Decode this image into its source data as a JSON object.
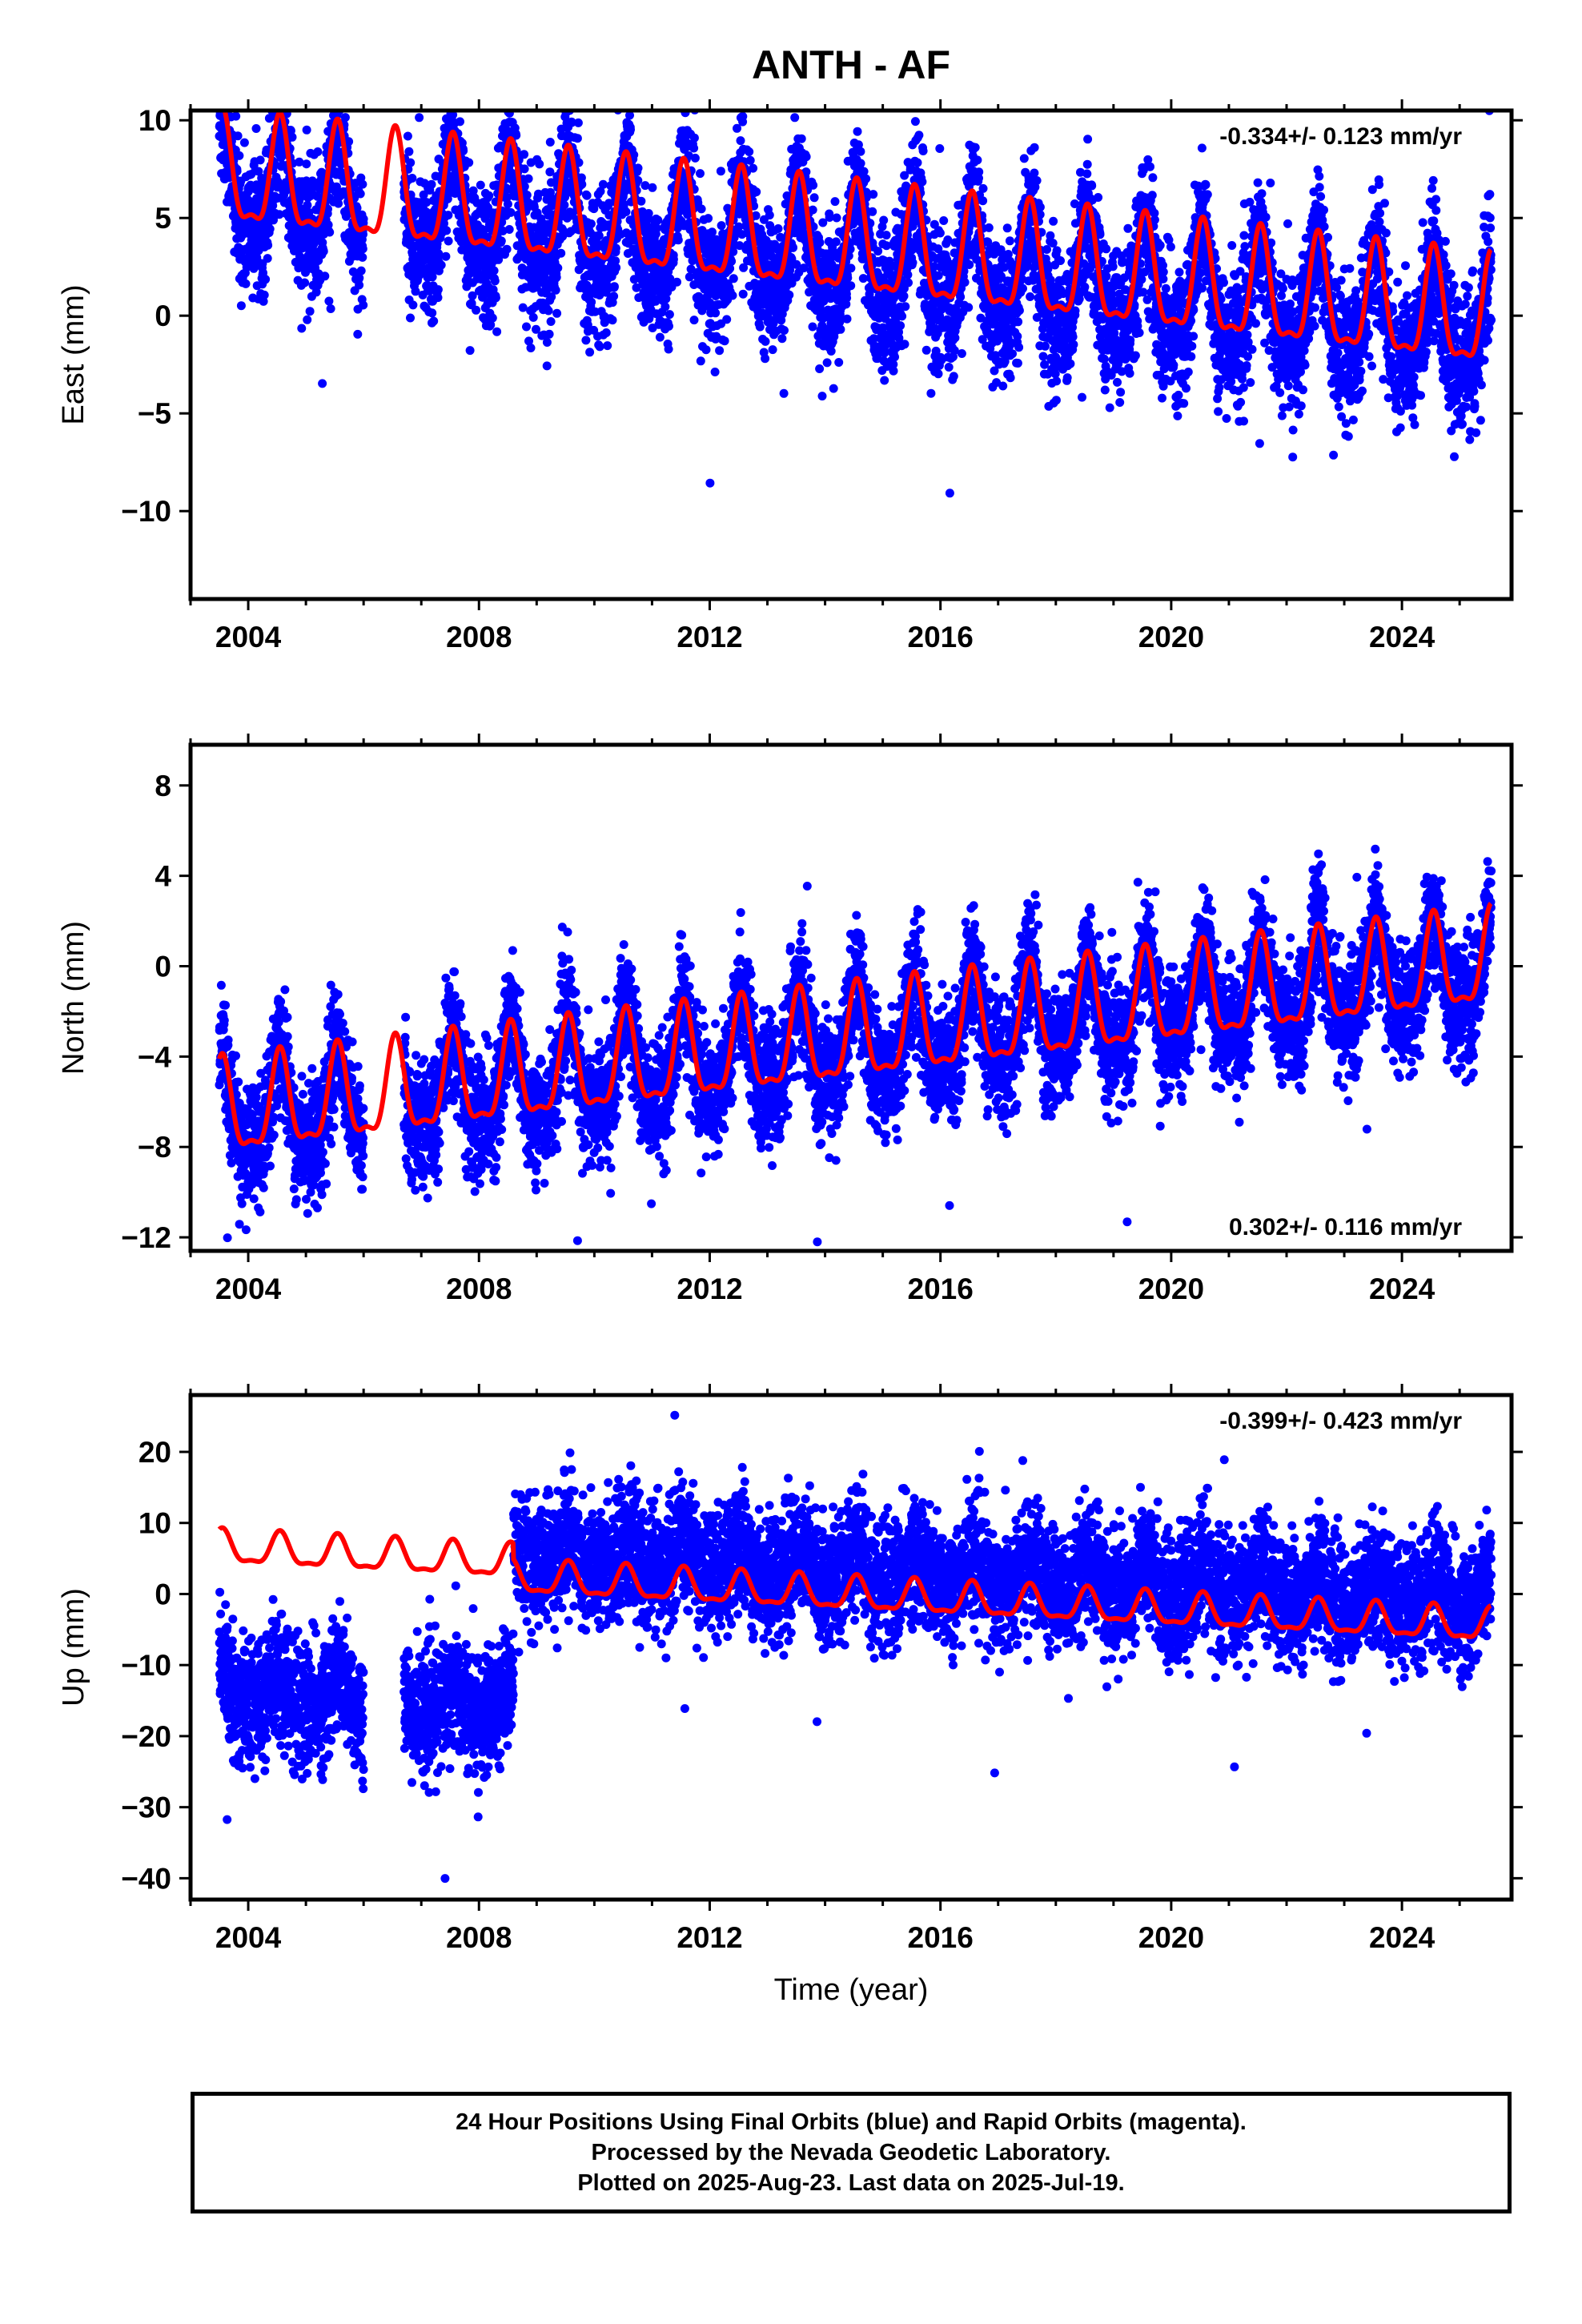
{
  "title": "ANTH - AF",
  "chart_data": [
    {
      "type": "scatter",
      "panel": "east",
      "ylabel": "East (mm)",
      "xlim": [
        2003.0,
        2025.9
      ],
      "ylim": [
        -14.5,
        10.5
      ],
      "yticks": [
        -10,
        -5,
        0,
        5,
        10
      ],
      "yticklabels": [
        "−10",
        "−5",
        "0",
        "5",
        "10"
      ],
      "xticks": [
        2004,
        2008,
        2012,
        2016,
        2020,
        2024
      ],
      "xticklabels": [
        "2004",
        "2008",
        "2012",
        "2016",
        "2020",
        "2024"
      ],
      "rate_label": "-0.334+/- 0.123 mm/yr",
      "rate_position": "top-right",
      "data_start": 2003.5,
      "data_end": 2025.55,
      "gaps": [
        [
          2006.0,
          2006.7
        ]
      ],
      "series": [
        {
          "role": "daily positions",
          "color": "#0000ff",
          "marker": "dot",
          "trend_mm_per_yr": -0.334,
          "offset_mm": 3.0,
          "annual_amp_mm": 2.6,
          "noise_mm": 1.7
        },
        {
          "role": "model fit",
          "color": "#ff0000",
          "marker": "line",
          "trend_mm_per_yr": -0.334,
          "offset_mm": 3.6,
          "annual_amp_mm": 2.7
        }
      ]
    },
    {
      "type": "scatter",
      "panel": "north",
      "ylabel": "North (mm)",
      "xlim": [
        2003.0,
        2025.9
      ],
      "ylim": [
        -12.6,
        9.8
      ],
      "yticks": [
        -12,
        -8,
        -4,
        0,
        4,
        8
      ],
      "yticklabels": [
        "−12",
        "−8",
        "−4",
        "0",
        "4",
        "8"
      ],
      "xticks": [
        2004,
        2008,
        2012,
        2016,
        2020,
        2024
      ],
      "xticklabels": [
        "2004",
        "2008",
        "2012",
        "2016",
        "2020",
        "2024"
      ],
      "rate_label": "0.302+/- 0.116 mm/yr",
      "rate_position": "bottom-right",
      "data_start": 2003.5,
      "data_end": 2025.55,
      "gaps": [
        [
          2006.0,
          2006.7
        ]
      ],
      "series": [
        {
          "role": "daily positions",
          "color": "#0000ff",
          "marker": "dot",
          "trend_mm_per_yr": 0.302,
          "offset_mm": -3.6,
          "annual_amp_mm": 2.0,
          "noise_mm": 1.3
        },
        {
          "role": "model fit",
          "color": "#ff0000",
          "marker": "line",
          "trend_mm_per_yr": 0.302,
          "offset_mm": -3.4,
          "annual_amp_mm": 2.0
        }
      ]
    },
    {
      "type": "scatter",
      "panel": "up",
      "ylabel": "Up (mm)",
      "xlabel": "Time (year)",
      "xlim": [
        2003.0,
        2025.9
      ],
      "ylim": [
        -43,
        28
      ],
      "yticks": [
        -40,
        -30,
        -20,
        -10,
        0,
        10,
        20
      ],
      "yticklabels": [
        "−40",
        "−30",
        "−20",
        "−10",
        "0",
        "10",
        "20"
      ],
      "xticks": [
        2004,
        2008,
        2012,
        2016,
        2020,
        2024
      ],
      "xticklabels": [
        "2004",
        "2008",
        "2012",
        "2016",
        "2020",
        "2024"
      ],
      "rate_label": "-0.399+/- 0.423 mm/yr",
      "rate_position": "top-right",
      "data_start": 2003.5,
      "data_end": 2025.55,
      "gaps": [
        [
          2006.0,
          2006.7
        ]
      ],
      "offset_epoch": 2008.6,
      "series": [
        {
          "role": "daily positions",
          "color": "#0000ff",
          "marker": "dot",
          "trend_mm_per_yr": -0.399,
          "offset_mm": -18.0,
          "offset_after_epoch_mm": 3.5,
          "annual_amp_mm": 2.2,
          "noise_mm": 4.2
        },
        {
          "role": "model fit",
          "color": "#ff0000",
          "marker": "line",
          "trend_mm_per_yr": -0.399,
          "offset_mm": 2.2,
          "offset_after_epoch_mm": 0.0,
          "annual_amp_mm": 2.2
        }
      ]
    }
  ],
  "footer": {
    "line1": "24 Hour Positions Using Final Orbits (blue) and Rapid Orbits (magenta).",
    "line2": "Processed by the Nevada Geodetic Laboratory.",
    "line3": "Plotted on 2025-Aug-23. Last data on 2025-Jul-19."
  }
}
